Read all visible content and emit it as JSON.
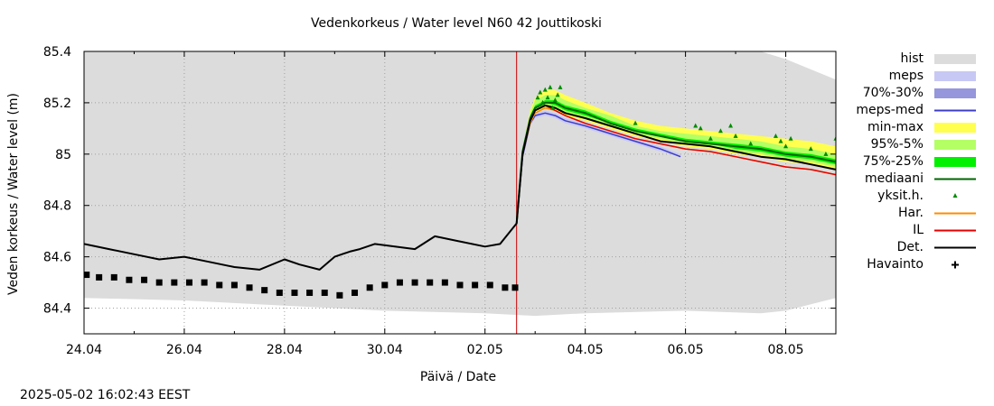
{
  "timestamp": "2025-05-02 16:02:43 EEST",
  "colors": {
    "hist": "#dcdcdc",
    "meps": "#c8c8f5",
    "p70_30": "#9696dc",
    "meps_med": "#3c3cc8",
    "minmax": "#ffff50",
    "p95_5": "#b4ff64",
    "p75_25": "#00f000",
    "mediaani": "#006400",
    "yksit": "#008c00",
    "har": "#ff8c00",
    "il": "#e60000",
    "det": "#000000",
    "havainto": "#000000",
    "now_line": "#cc0000"
  },
  "chart_data": {
    "type": "line",
    "title": "Vedenkorkeus / Water level   N60 42 Jouttikoski",
    "xlabel": "Päivä / Date",
    "ylabel": "Veden korkeus / Water level (m)",
    "x_unit": "day of year 2025 (24.04 = 114)",
    "xlim": [
      114,
      129
    ],
    "ylim": [
      84.3,
      85.4
    ],
    "xticks": [
      114,
      116,
      118,
      120,
      122,
      124,
      126,
      128
    ],
    "xtick_labels": [
      "24.04",
      "26.04",
      "28.04",
      "30.04",
      "02.05",
      "04.05",
      "06.05",
      "08.05"
    ],
    "yticks": [
      84.4,
      84.6,
      84.8,
      85.0,
      85.2,
      85.4
    ],
    "ytick_labels": [
      "84.4",
      "84.6",
      "84.8",
      "85",
      "85.2",
      "85.4"
    ],
    "grid": true,
    "legend_position": "right",
    "now_x": 122.63,
    "legend": [
      {
        "key": "hist",
        "label": "hist",
        "kind": "band"
      },
      {
        "key": "meps",
        "label": "meps",
        "kind": "band"
      },
      {
        "key": "p70_30",
        "label": "70%-30%",
        "kind": "band"
      },
      {
        "key": "meps_med",
        "label": "meps-med",
        "kind": "line"
      },
      {
        "key": "minmax",
        "label": "min-max",
        "kind": "band"
      },
      {
        "key": "p95_5",
        "label": "95%-5%",
        "kind": "band"
      },
      {
        "key": "p75_25",
        "label": "75%-25%",
        "kind": "band"
      },
      {
        "key": "mediaani",
        "label": "mediaani",
        "kind": "line"
      },
      {
        "key": "yksit",
        "label": "yksit.h.",
        "kind": "triangle"
      },
      {
        "key": "har",
        "label": "Har.",
        "kind": "line"
      },
      {
        "key": "il",
        "label": "IL",
        "kind": "line"
      },
      {
        "key": "det",
        "label": "Det.",
        "kind": "line"
      },
      {
        "key": "havainto",
        "label": "Havainto",
        "kind": "plus"
      }
    ],
    "hist_band": {
      "x": [
        114,
        116,
        118,
        120,
        122,
        123,
        124,
        126,
        127.5,
        128,
        129
      ],
      "lower": [
        84.44,
        84.43,
        84.41,
        84.39,
        84.38,
        84.37,
        84.38,
        84.39,
        84.38,
        84.39,
        84.44
      ],
      "upper": [
        85.4,
        85.4,
        85.4,
        85.4,
        85.4,
        85.4,
        85.4,
        85.4,
        85.4,
        85.37,
        85.29
      ]
    },
    "forecast_bands": {
      "x": [
        122.63,
        122.75,
        122.9,
        123.0,
        123.2,
        123.4,
        123.6,
        124.0,
        124.5,
        125.0,
        125.5,
        126.0,
        126.5,
        127.0,
        127.5,
        128.0,
        128.5,
        129.0
      ],
      "minmax_lower": [
        84.73,
        85.0,
        85.12,
        85.16,
        85.18,
        85.17,
        85.15,
        85.13,
        85.1,
        85.07,
        85.05,
        85.03,
        85.02,
        85.0,
        84.99,
        84.97,
        84.96,
        84.94
      ],
      "minmax_upper": [
        84.73,
        85.02,
        85.17,
        85.22,
        85.25,
        85.25,
        85.23,
        85.2,
        85.16,
        85.13,
        85.11,
        85.1,
        85.09,
        85.08,
        85.07,
        85.06,
        85.05,
        85.03
      ],
      "p95_5_lower": [
        84.73,
        85.01,
        85.13,
        85.17,
        85.19,
        85.18,
        85.16,
        85.14,
        85.11,
        85.08,
        85.06,
        85.04,
        85.03,
        85.01,
        85.0,
        84.98,
        84.97,
        84.95
      ],
      "p95_5_upper": [
        84.73,
        85.02,
        85.16,
        85.21,
        85.23,
        85.23,
        85.21,
        85.18,
        85.15,
        85.11,
        85.09,
        85.08,
        85.07,
        85.06,
        85.05,
        85.03,
        85.02,
        85.0
      ],
      "p75_25_lower": [
        84.73,
        85.01,
        85.14,
        85.18,
        85.2,
        85.19,
        85.17,
        85.15,
        85.12,
        85.09,
        85.07,
        85.05,
        85.04,
        85.02,
        85.01,
        84.99,
        84.98,
        84.96
      ],
      "p75_25_upper": [
        84.73,
        85.02,
        85.15,
        85.19,
        85.21,
        85.21,
        85.19,
        85.17,
        85.13,
        85.1,
        85.08,
        85.06,
        85.05,
        85.04,
        85.03,
        85.01,
        85.0,
        84.98
      ]
    },
    "meps_band": {
      "x": [
        122.63,
        122.75,
        122.9,
        123.0,
        123.2,
        123.4,
        123.6,
        124.0,
        124.5,
        125.0,
        125.5,
        125.9
      ],
      "lower": [
        84.73,
        84.99,
        85.11,
        85.14,
        85.15,
        85.14,
        85.12,
        85.1,
        85.07,
        85.04,
        85.01,
        84.99
      ],
      "upper": [
        84.73,
        85.0,
        85.13,
        85.16,
        85.17,
        85.16,
        85.14,
        85.12,
        85.09,
        85.06,
        85.03,
        85.0
      ]
    },
    "series": [
      {
        "name": "Det.",
        "key": "det",
        "x": [
          114,
          114.5,
          115,
          115.5,
          116,
          116.5,
          117,
          117.5,
          118,
          118.3,
          118.7,
          119,
          119.3,
          119.5,
          119.8,
          120.2,
          120.6,
          121,
          121.5,
          122,
          122.3,
          122.63,
          122.75,
          122.9,
          123.0,
          123.2,
          123.4,
          123.6,
          124.0,
          124.5,
          125.0,
          125.5,
          126.0,
          126.5,
          127.0,
          127.5,
          128.0,
          128.5,
          129.0
        ],
        "y": [
          84.65,
          84.63,
          84.61,
          84.59,
          84.6,
          84.58,
          84.56,
          84.55,
          84.59,
          84.57,
          84.55,
          84.6,
          84.62,
          84.63,
          84.65,
          84.64,
          84.63,
          84.68,
          84.66,
          84.64,
          84.65,
          84.73,
          85.0,
          85.13,
          85.17,
          85.19,
          85.18,
          85.16,
          85.14,
          85.11,
          85.08,
          85.05,
          85.04,
          85.03,
          85.01,
          84.99,
          84.98,
          84.96,
          84.94
        ]
      },
      {
        "name": "mediaani",
        "key": "mediaani",
        "x": [
          122.63,
          122.75,
          122.9,
          123.0,
          123.2,
          123.4,
          123.6,
          124.0,
          124.5,
          125.0,
          125.5,
          126.0,
          126.5,
          127.0,
          127.5,
          128.0,
          128.5,
          129.0
        ],
        "y": [
          84.73,
          85.01,
          85.14,
          85.18,
          85.2,
          85.2,
          85.18,
          85.16,
          85.12,
          85.09,
          85.07,
          85.05,
          85.04,
          85.03,
          85.02,
          85.0,
          84.99,
          84.97
        ]
      },
      {
        "name": "IL",
        "key": "il",
        "x": [
          122.63,
          122.75,
          122.9,
          123.0,
          123.2,
          123.4,
          123.6,
          124.0,
          124.5,
          125.0,
          125.5,
          126.0,
          126.5,
          127.0,
          127.5,
          128.0,
          128.5,
          129.0
        ],
        "y": [
          84.73,
          85.0,
          85.13,
          85.17,
          85.19,
          85.17,
          85.15,
          85.12,
          85.09,
          85.06,
          85.04,
          85.02,
          85.01,
          84.99,
          84.97,
          84.95,
          84.94,
          84.92
        ]
      },
      {
        "name": "Har.",
        "key": "har",
        "x": [
          122.63,
          122.75,
          122.9,
          123.0,
          123.2,
          123.4,
          123.6,
          124.0,
          124.5,
          125.0,
          125.5,
          126.0,
          126.5,
          127.0,
          127.5,
          128.0,
          128.5,
          129.0
        ],
        "y": [
          84.73,
          85.0,
          85.12,
          85.16,
          85.18,
          85.17,
          85.15,
          85.12,
          85.09,
          85.06,
          85.04,
          85.02,
          85.01,
          84.99,
          84.97,
          84.95,
          84.94,
          84.92
        ]
      },
      {
        "name": "meps-med",
        "key": "meps_med",
        "x": [
          122.63,
          122.75,
          122.9,
          123.0,
          123.2,
          123.4,
          123.6,
          124.0,
          124.5,
          125.0,
          125.5,
          125.9
        ],
        "y": [
          84.73,
          84.99,
          85.12,
          85.15,
          85.16,
          85.15,
          85.13,
          85.11,
          85.08,
          85.05,
          85.02,
          84.99
        ]
      }
    ],
    "havainto": {
      "x": [
        114.05,
        114.3,
        114.6,
        114.9,
        115.2,
        115.5,
        115.8,
        116.1,
        116.4,
        116.7,
        117.0,
        117.3,
        117.6,
        117.9,
        118.2,
        118.5,
        118.8,
        119.1,
        119.4,
        119.7,
        120.0,
        120.3,
        120.6,
        120.9,
        121.2,
        121.5,
        121.8,
        122.1,
        122.4,
        122.6
      ],
      "y": [
        84.53,
        84.52,
        84.52,
        84.51,
        84.51,
        84.5,
        84.5,
        84.5,
        84.5,
        84.49,
        84.49,
        84.48,
        84.47,
        84.46,
        84.46,
        84.46,
        84.46,
        84.45,
        84.46,
        84.48,
        84.49,
        84.5,
        84.5,
        84.5,
        84.5,
        84.49,
        84.49,
        84.49,
        84.48,
        84.48
      ]
    },
    "yksit": {
      "x": [
        123.05,
        123.1,
        123.15,
        123.2,
        123.25,
        123.3,
        123.35,
        123.4,
        123.45,
        123.5,
        125.0,
        126.2,
        126.3,
        126.5,
        126.7,
        126.9,
        127.0,
        127.3,
        127.8,
        127.9,
        128.0,
        128.1,
        128.5,
        128.8,
        129.0
      ],
      "y": [
        85.22,
        85.24,
        85.2,
        85.25,
        85.22,
        85.26,
        85.18,
        85.21,
        85.23,
        85.26,
        85.12,
        85.11,
        85.1,
        85.06,
        85.09,
        85.11,
        85.07,
        85.04,
        85.07,
        85.05,
        85.03,
        85.06,
        85.02,
        85.0,
        85.06
      ]
    }
  }
}
